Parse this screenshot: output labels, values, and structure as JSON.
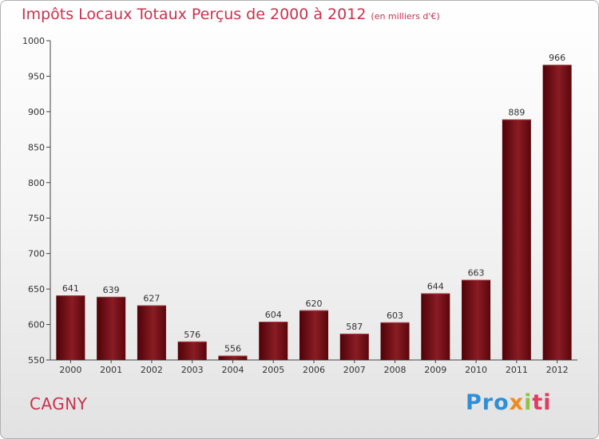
{
  "chart_data": {
    "type": "bar",
    "title": "Impôts Locaux Totaux Perçus de 2000 à 2012",
    "unit_note": "(en milliers d'€)",
    "categories": [
      "2000",
      "2001",
      "2002",
      "2003",
      "2004",
      "2005",
      "2006",
      "2007",
      "2008",
      "2009",
      "2010",
      "2011",
      "2012"
    ],
    "values": [
      641,
      639,
      627,
      576,
      556,
      604,
      620,
      587,
      603,
      644,
      663,
      889,
      966
    ],
    "ylim": [
      550,
      1000
    ],
    "yticks": [
      550,
      600,
      650,
      700,
      750,
      800,
      850,
      900,
      950,
      1000
    ],
    "grid": false,
    "bar_color": "#6e0c12"
  },
  "city": "CAGNY",
  "logo": {
    "p1": "Pro",
    "p2": "x",
    "p3": "i",
    "p4": "ti"
  }
}
